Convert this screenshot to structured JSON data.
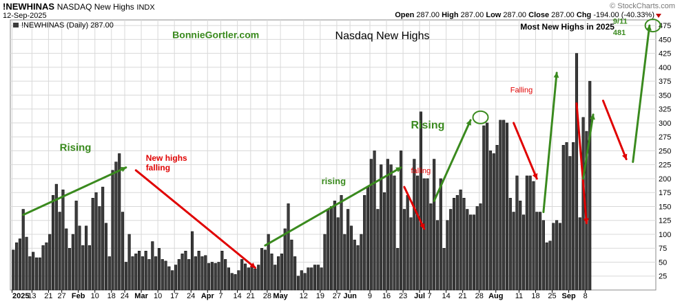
{
  "header": {
    "symbol": "!NEWHINAS",
    "name": "NASDAQ New Highs",
    "exchange": "INDX",
    "date": "12-Sep-2025",
    "brand": "© StockCharts.com",
    "open_label": "Open",
    "open": "287.00",
    "high_label": "High",
    "high": "287.00",
    "low_label": "Low",
    "low": "287.00",
    "close_label": "Close",
    "close": "287.00",
    "chg_label": "Chg",
    "chg": "-194.00 (-40.33%)"
  },
  "legend_text": "!NEWHINAS (Daily) 287.00",
  "colors": {
    "bar_fill": "#3c3c3c",
    "bar_stroke": "#000000",
    "green": "#3a8a1e",
    "red": "#e00000",
    "grid": "#d8d8d8"
  },
  "chart_data": {
    "type": "bar",
    "title": "Nasdaq New Highs",
    "ylim": [
      0,
      485
    ],
    "y_ticks": [
      25,
      50,
      75,
      100,
      125,
      150,
      175,
      200,
      225,
      250,
      275,
      300,
      325,
      350,
      375,
      400,
      425,
      450,
      475
    ],
    "x_tick_labels": [
      {
        "label": "2025",
        "index": 0,
        "bold": true
      },
      {
        "label": "13",
        "index": 6
      },
      {
        "label": "21",
        "index": 11
      },
      {
        "label": "27",
        "index": 15
      },
      {
        "label": "Feb",
        "index": 20,
        "bold": true
      },
      {
        "label": "10",
        "index": 25
      },
      {
        "label": "18",
        "index": 30
      },
      {
        "label": "24",
        "index": 34
      },
      {
        "label": "Mar",
        "index": 39,
        "bold": true
      },
      {
        "label": "10",
        "index": 44
      },
      {
        "label": "17",
        "index": 49
      },
      {
        "label": "24",
        "index": 54
      },
      {
        "label": "Apr",
        "index": 59,
        "bold": true
      },
      {
        "label": "7",
        "index": 63
      },
      {
        "label": "14",
        "index": 68
      },
      {
        "label": "21",
        "index": 72
      },
      {
        "label": "28",
        "index": 77
      },
      {
        "label": "May",
        "index": 81,
        "bold": true
      },
      {
        "label": "12",
        "index": 88
      },
      {
        "label": "19",
        "index": 93
      },
      {
        "label": "27",
        "index": 98
      },
      {
        "label": "Jun",
        "index": 102,
        "bold": true
      },
      {
        "label": "9",
        "index": 108
      },
      {
        "label": "16",
        "index": 113
      },
      {
        "label": "23",
        "index": 118
      },
      {
        "label": "Jul",
        "index": 123,
        "bold": true
      },
      {
        "label": "7",
        "index": 126
      },
      {
        "label": "14",
        "index": 131
      },
      {
        "label": "21",
        "index": 136
      },
      {
        "label": "28",
        "index": 141
      },
      {
        "label": "Aug",
        "index": 146,
        "bold": true
      },
      {
        "label": "11",
        "index": 153
      },
      {
        "label": "18",
        "index": 158
      },
      {
        "label": "25",
        "index": 163
      },
      {
        "label": "Sep",
        "index": 168,
        "bold": true
      },
      {
        "label": "8",
        "index": 173
      }
    ],
    "values": [
      72,
      85,
      92,
      145,
      95,
      60,
      68,
      58,
      58,
      80,
      85,
      100,
      170,
      190,
      140,
      180,
      110,
      75,
      100,
      160,
      115,
      80,
      115,
      80,
      165,
      175,
      150,
      185,
      120,
      60,
      215,
      230,
      245,
      140,
      50,
      100,
      60,
      65,
      70,
      60,
      70,
      55,
      87,
      60,
      75,
      55,
      52,
      42,
      35,
      45,
      55,
      65,
      70,
      55,
      105,
      60,
      70,
      60,
      62,
      48,
      50,
      48,
      50,
      70,
      55,
      40,
      30,
      28,
      35,
      55,
      47,
      40,
      42,
      38,
      45,
      75,
      72,
      100,
      65,
      45,
      60,
      65,
      110,
      155,
      90,
      60,
      25,
      35,
      30,
      40,
      40,
      45,
      45,
      40,
      100,
      145,
      150,
      160,
      130,
      170,
      100,
      145,
      115,
      90,
      80,
      100,
      170,
      185,
      235,
      250,
      145,
      225,
      175,
      235,
      225,
      205,
      75,
      250,
      145,
      170,
      130,
      235,
      205,
      320,
      200,
      200,
      155,
      235,
      125,
      200,
      75,
      125,
      145,
      165,
      170,
      180,
      165,
      145,
      135,
      135,
      150,
      155,
      295,
      300,
      250,
      245,
      260,
      305,
      305,
      300,
      165,
      140,
      205,
      160,
      135,
      205,
      205,
      195,
      140,
      140,
      125,
      85,
      88,
      120,
      125,
      120,
      260,
      265,
      240,
      265,
      425,
      130,
      310,
      285,
      375
    ],
    "annotations": [
      {
        "text": "Rising",
        "color": "green",
        "x_index": 14,
        "y": 250,
        "size": 15,
        "bold": true
      },
      {
        "text": "New highs",
        "color": "red",
        "x_index": 40,
        "y": 232,
        "size": 12,
        "bold": true
      },
      {
        "text": "falling",
        "color": "red",
        "x_index": 40,
        "y": 215,
        "size": 12,
        "bold": true
      },
      {
        "text": "rising",
        "color": "green",
        "x_index": 93,
        "y": 190,
        "size": 13,
        "bold": true
      },
      {
        "text": "falling",
        "color": "red",
        "x_index": 120,
        "y": 210,
        "size": 11,
        "bold": false
      },
      {
        "text": "Rising",
        "color": "green",
        "x_index": 120,
        "y": 290,
        "size": 16,
        "bold": true
      },
      {
        "text": "Falling",
        "color": "red",
        "x_index": 150,
        "y": 355,
        "size": 11,
        "bold": false
      },
      {
        "text": "Most New Highs in 2025",
        "color": "black",
        "x_index": 153,
        "y": 468,
        "size": 12,
        "bold": true
      },
      {
        "text": "9/11",
        "color": "green",
        "x_index": 181,
        "y": 478,
        "size": 11,
        "bold": true
      },
      {
        "text": "481",
        "color": "green",
        "x_index": 181,
        "y": 458,
        "size": 11,
        "bold": true
      },
      {
        "text": "BonnieGortler.com",
        "color": "green",
        "x_index": 48,
        "y": 452,
        "size": 14,
        "bold": true
      }
    ],
    "arrows": [
      {
        "color": "green",
        "from": [
          3,
          135
        ],
        "to": [
          34,
          220
        ]
      },
      {
        "color": "red",
        "from": [
          37,
          215
        ],
        "to": [
          73,
          40
        ]
      },
      {
        "color": "green",
        "from": [
          76,
          80
        ],
        "to": [
          117,
          220
        ]
      },
      {
        "color": "red",
        "from": [
          118,
          185
        ],
        "to": [
          124,
          110
        ]
      },
      {
        "color": "green",
        "from": [
          127,
          160
        ],
        "to": [
          138,
          305
        ]
      },
      {
        "color": "red",
        "from": [
          151,
          300
        ],
        "to": [
          158,
          200
        ]
      },
      {
        "color": "green",
        "from": [
          160,
          140
        ],
        "to": [
          164,
          390
        ]
      },
      {
        "color": "red",
        "from": [
          170,
          335
        ],
        "to": [
          173,
          120
        ]
      },
      {
        "color": "green",
        "from": [
          172,
          200
        ],
        "to": [
          175,
          315
        ]
      },
      {
        "color": "red",
        "from": [
          178,
          340
        ],
        "to": [
          185,
          235
        ]
      },
      {
        "color": "green",
        "from": [
          187,
          230
        ],
        "to": [
          192,
          475
        ]
      }
    ],
    "ellipses": [
      {
        "color": "green",
        "x_index": 141,
        "y": 310
      },
      {
        "color": "green",
        "x_index": 193,
        "y": 475
      }
    ]
  }
}
